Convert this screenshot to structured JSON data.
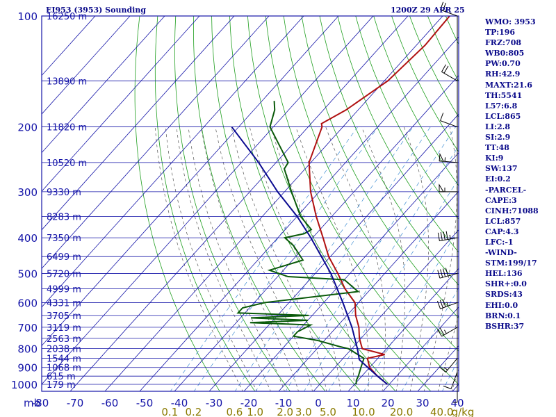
{
  "header": {
    "station": "EI953 (3953) Sounding",
    "time": "1200Z 29 APR 25"
  },
  "indices": [
    "WMO: 3953",
    "TP:196",
    "FRZ:708",
    "WB0:805",
    "PW:0.70",
    "RH:42.9",
    "MAXT:21.6",
    "TH:5541",
    "L57:6.8",
    "LCL:865",
    "LI:2.8",
    "SI:2.9",
    "TT:48",
    "KI:9",
    "SW:137",
    "EI:0.2",
    "-PARCEL-",
    "CAPE:3",
    "CINH:71088",
    "LCL:857",
    "CAP:4.3",
    "LFC:-1",
    "-WIND-",
    "STM:199/17",
    "HEL:136",
    "SHR+:0.0",
    "SRDS:43",
    "EHI:0.0",
    "BRN:0.1",
    "BSHR:37"
  ],
  "colors": {
    "frame": "#1414a8",
    "isotherm": "#1414a8",
    "dry_adiabat": "#1e9e1e",
    "moist_adiabat": "#555555",
    "mixing_ratio": "#3c8cd2",
    "temperature": "#b01010",
    "dewpoint": "#0a5a0a",
    "parcel": "#0a0a90",
    "mixing_label": "#8a7a00"
  },
  "chart_data": {
    "type": "line",
    "title": "EI953 (3953) Sounding",
    "pressure_axis": {
      "unit": "mb",
      "ticks": [
        100,
        200,
        300,
        400,
        500,
        600,
        700,
        800,
        900,
        1000
      ],
      "scale": "log",
      "range": [
        100,
        1050
      ]
    },
    "temperature_axis": {
      "unit": "C",
      "ticks": [
        -80,
        -70,
        -60,
        -50,
        -40,
        -30,
        -20,
        -10,
        0,
        10,
        20,
        30,
        40
      ],
      "skew": true
    },
    "mixing_ratio_labels": [
      "0.1",
      "0.2",
      "0.6",
      "1.0",
      "2.0",
      "3.0",
      "5.0",
      "10.0",
      "20.0",
      "40.0",
      "g/kg"
    ],
    "height_labels": [
      {
        "p": 100,
        "label": "16250 m"
      },
      {
        "p": 150,
        "label": "13890 m"
      },
      {
        "p": 200,
        "label": "11820 m"
      },
      {
        "p": 250,
        "label": "10520 m"
      },
      {
        "p": 300,
        "label": "9330 m"
      },
      {
        "p": 350,
        "label": "8283 m"
      },
      {
        "p": 400,
        "label": "7350 m"
      },
      {
        "p": 450,
        "label": "6499 m"
      },
      {
        "p": 500,
        "label": "5720 m"
      },
      {
        "p": 550,
        "label": "4999 m"
      },
      {
        "p": 600,
        "label": "4331 m"
      },
      {
        "p": 650,
        "label": "3705 m"
      },
      {
        "p": 700,
        "label": "3119 m"
      },
      {
        "p": 750,
        "label": "2563 m"
      },
      {
        "p": 800,
        "label": "2038 m"
      },
      {
        "p": 850,
        "label": "1544 m"
      },
      {
        "p": 900,
        "label": "1068 m"
      },
      {
        "p": 950,
        "label": "615 m"
      },
      {
        "p": 1000,
        "label": "179 m"
      }
    ],
    "series": [
      {
        "key": "temperature",
        "points": [
          {
            "p": 1000,
            "t": 19.5
          },
          {
            "p": 950,
            "t": 14.5
          },
          {
            "p": 900,
            "t": 10.0
          },
          {
            "p": 850,
            "t": 7.0
          },
          {
            "p": 830,
            "t": 11.0
          },
          {
            "p": 800,
            "t": 3.0
          },
          {
            "p": 750,
            "t": -0.5
          },
          {
            "p": 700,
            "t": -3.5
          },
          {
            "p": 650,
            "t": -7.5
          },
          {
            "p": 600,
            "t": -11.0
          },
          {
            "p": 550,
            "t": -17.5
          },
          {
            "p": 500,
            "t": -23.5
          },
          {
            "p": 450,
            "t": -30.5
          },
          {
            "p": 400,
            "t": -37.0
          },
          {
            "p": 350,
            "t": -44.5
          },
          {
            "p": 300,
            "t": -52.5
          },
          {
            "p": 250,
            "t": -60.5
          },
          {
            "p": 200,
            "t": -66.0
          },
          {
            "p": 196,
            "t": -67.0
          },
          {
            "p": 180,
            "t": -63.5
          },
          {
            "p": 150,
            "t": -59.0
          },
          {
            "p": 120,
            "t": -57.5
          },
          {
            "p": 100,
            "t": -58.0
          }
        ]
      },
      {
        "key": "dewpoint",
        "points": [
          {
            "p": 1000,
            "t": 10.5
          },
          {
            "p": 975,
            "t": 9.5
          },
          {
            "p": 950,
            "t": 9.0
          },
          {
            "p": 900,
            "t": 7.5
          },
          {
            "p": 850,
            "t": 6.0
          },
          {
            "p": 800,
            "t": -1.0
          },
          {
            "p": 790,
            "t": -4.0
          },
          {
            "p": 760,
            "t": -12.0
          },
          {
            "p": 740,
            "t": -20.0
          },
          {
            "p": 720,
            "t": -20.0
          },
          {
            "p": 690,
            "t": -18.0
          },
          {
            "p": 680,
            "t": -36.0
          },
          {
            "p": 670,
            "t": -20.0
          },
          {
            "p": 660,
            "t": -37.0
          },
          {
            "p": 650,
            "t": -21.0
          },
          {
            "p": 640,
            "t": -42.0
          },
          {
            "p": 620,
            "t": -42.0
          },
          {
            "p": 600,
            "t": -37.0
          },
          {
            "p": 560,
            "t": -13.0
          },
          {
            "p": 520,
            "t": -20.0
          },
          {
            "p": 510,
            "t": -37.0
          },
          {
            "p": 490,
            "t": -44.0
          },
          {
            "p": 460,
            "t": -37.0
          },
          {
            "p": 420,
            "t": -43.5
          },
          {
            "p": 400,
            "t": -48.0
          },
          {
            "p": 390,
            "t": -43.5
          },
          {
            "p": 380,
            "t": -42.5
          },
          {
            "p": 350,
            "t": -49.0
          },
          {
            "p": 300,
            "t": -58.0
          },
          {
            "p": 260,
            "t": -66.0
          },
          {
            "p": 250,
            "t": -66.5
          },
          {
            "p": 200,
            "t": -81.0
          },
          {
            "p": 180,
            "t": -84.0
          },
          {
            "p": 170,
            "t": -86.5
          }
        ]
      },
      {
        "key": "parcel",
        "points": [
          {
            "p": 1000,
            "t": 19.5
          },
          {
            "p": 950,
            "t": 14.5
          },
          {
            "p": 900,
            "t": 9.5
          },
          {
            "p": 857,
            "t": 5.0
          },
          {
            "p": 800,
            "t": 1.6
          },
          {
            "p": 700,
            "t": -5.5
          },
          {
            "p": 600,
            "t": -14.5
          },
          {
            "p": 500,
            "t": -25.5
          },
          {
            "p": 400,
            "t": -40.5
          },
          {
            "p": 350,
            "t": -50.0
          },
          {
            "p": 300,
            "t": -62.0
          },
          {
            "p": 250,
            "t": -75.0
          },
          {
            "p": 200,
            "t": -92.0
          }
        ]
      }
    ],
    "winds": [
      {
        "p": 100,
        "dir": 290,
        "spd": 25
      },
      {
        "p": 150,
        "dir": 300,
        "spd": 20
      },
      {
        "p": 200,
        "dir": 290,
        "spd": 10
      },
      {
        "p": 250,
        "dir": 275,
        "spd": 55
      },
      {
        "p": 300,
        "dir": 270,
        "spd": 55
      },
      {
        "p": 400,
        "dir": 260,
        "spd": 45
      },
      {
        "p": 500,
        "dir": 255,
        "spd": 40
      },
      {
        "p": 600,
        "dir": 250,
        "spd": 35
      },
      {
        "p": 700,
        "dir": 240,
        "spd": 25
      },
      {
        "p": 850,
        "dir": 220,
        "spd": 15
      },
      {
        "p": 925,
        "dir": 200,
        "spd": 10
      },
      {
        "p": 1000,
        "dir": 180,
        "spd": 5
      }
    ]
  }
}
